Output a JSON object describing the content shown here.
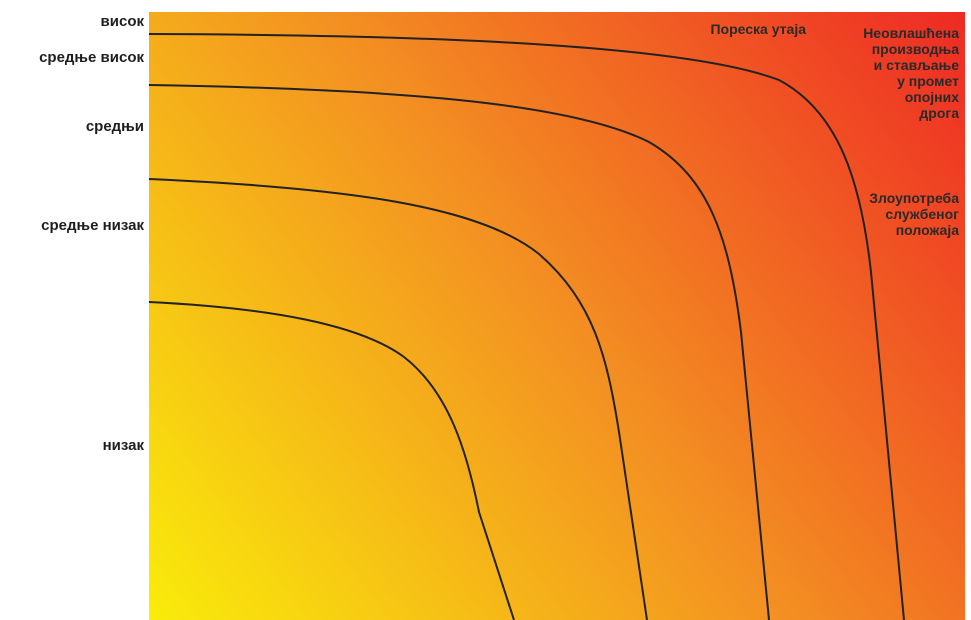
{
  "risk_levels": [
    "висок",
    "средње висок",
    "средњи",
    "средње низак",
    "низак"
  ],
  "categories": {
    "tax_evasion": "Пореска утаја",
    "narcotics": [
      "Неовлашћена",
      "производња",
      "и стављање",
      "у промет",
      "опојних",
      "дрога"
    ],
    "abuse_of_office": [
      "Злоупотреба",
      "службеног",
      "положаја"
    ]
  },
  "colors": {
    "gradient_low": "#f9ec0a",
    "gradient_mid": "#f39022",
    "gradient_high": "#ee2a24",
    "curve": "#222222"
  },
  "curve_count": 4
}
